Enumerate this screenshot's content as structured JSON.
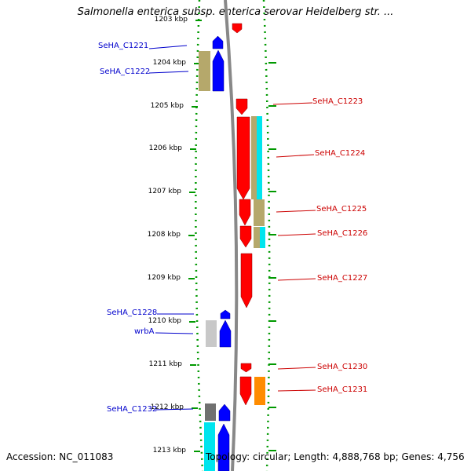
{
  "title": "Salmonella enterica subsp. enterica serovar Heidelberg str. ...",
  "footer": {
    "accession": "Accession: NC_011083",
    "summary": "Topology: circular; Length: 4,888,768 bp; Genes: 4,756"
  },
  "colors": {
    "forward": "#0000ff",
    "reverse": "#ff0000",
    "tan": "#b5a86b",
    "cyan": "#00e5ee",
    "orange": "#ff8c00",
    "gray": "#c8c8c8",
    "dark_gray": "#707070",
    "dots": "#009900",
    "backbone": "#888888"
  },
  "scale": {
    "labels": [
      "1203 kbp",
      "1204 kbp",
      "1205 kbp",
      "1206 kbp",
      "1207 kbp",
      "1208 kbp",
      "1209 kbp",
      "1210 kbp",
      "1211 kbp",
      "1212 kbp",
      "1213 kbp"
    ]
  },
  "gene_labels_left": [
    {
      "text": "SeHA_C1221",
      "color": "#0000cc"
    },
    {
      "text": "SeHA_C1222",
      "color": "#0000cc"
    },
    {
      "text": "SeHA_C1228",
      "color": "#0000cc"
    },
    {
      "text": "wrbA",
      "color": "#0000cc"
    },
    {
      "text": "SeHA_C1232",
      "color": "#0000cc"
    }
  ],
  "gene_labels_right": [
    {
      "text": "SeHA_C1223",
      "color": "#cc0000"
    },
    {
      "text": "SeHA_C1224",
      "color": "#cc0000"
    },
    {
      "text": "SeHA_C1225",
      "color": "#cc0000"
    },
    {
      "text": "SeHA_C1226",
      "color": "#cc0000"
    },
    {
      "text": "SeHA_C1227",
      "color": "#cc0000"
    },
    {
      "text": "SeHA_C1230",
      "color": "#cc0000"
    },
    {
      "text": "SeHA_C1231",
      "color": "#cc0000"
    }
  ]
}
